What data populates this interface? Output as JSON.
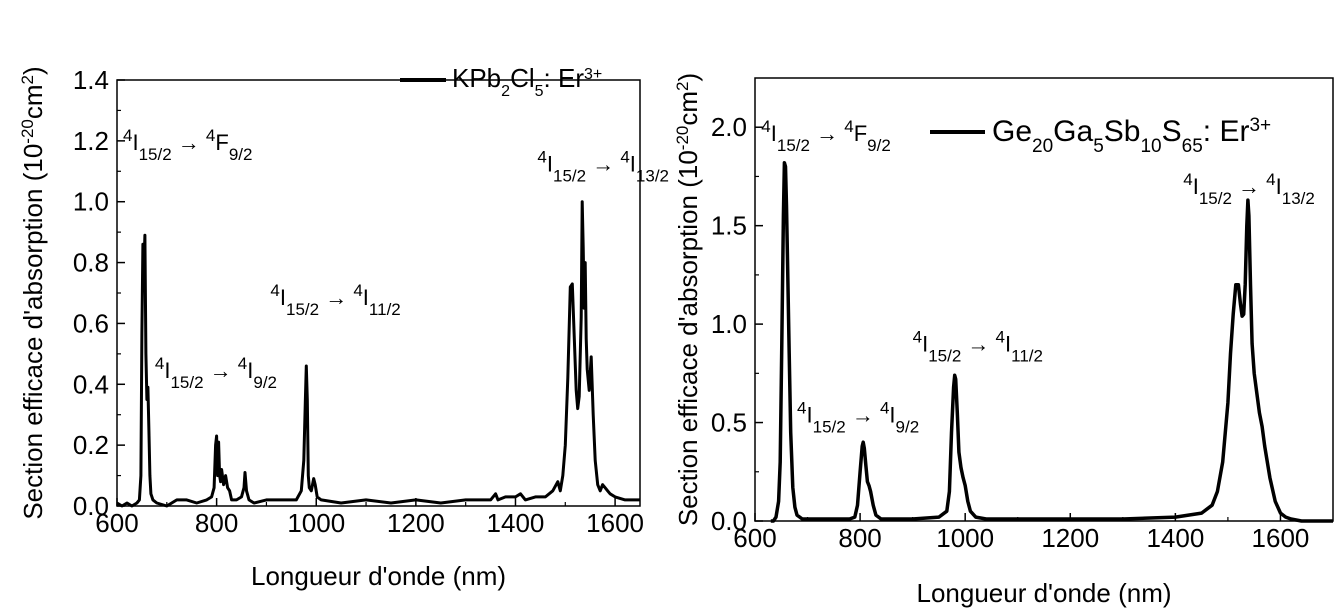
{
  "chart_data": [
    {
      "type": "line",
      "xlabel": "Longueur d'onde (nm)",
      "ylabel": "Section efficace d'absorption (10^-20 cm^2)",
      "ylabel_parts": [
        "Section efficace d'absorption (10",
        "-20",
        "cm",
        "2",
        ")"
      ],
      "xlim": [
        600,
        1650
      ],
      "ylim": [
        0,
        1.4
      ],
      "xticks": [
        600,
        800,
        1000,
        1200,
        1400,
        1600
      ],
      "yticks": [
        0.0,
        0.2,
        0.4,
        0.6,
        0.8,
        1.0,
        1.2,
        1.4
      ],
      "xtick_labels": [
        "600",
        "800",
        "1000",
        "1200",
        "1400",
        "1600"
      ],
      "ytick_labels": [
        "0.0",
        "0.2",
        "0.4",
        "0.6",
        "0.8",
        "1.0",
        "1.2",
        "1.4"
      ],
      "legend": {
        "placement": "top-right",
        "parts": [
          {
            "t": "KPb",
            "s": "n"
          },
          {
            "t": "2",
            "s": "sub"
          },
          {
            "t": "Cl",
            "s": "n"
          },
          {
            "t": "5",
            "s": "sub"
          },
          {
            "t": ": Er",
            "s": "n"
          },
          {
            "t": "3+",
            "s": "sup"
          }
        ]
      },
      "series": [
        {
          "color": "#000000",
          "x": [
            600,
            610,
            620,
            630,
            640,
            645,
            648,
            650,
            652,
            654,
            656,
            658,
            660,
            662,
            664,
            666,
            668,
            672,
            680,
            700,
            720,
            740,
            760,
            780,
            790,
            795,
            798,
            800,
            802,
            804,
            806,
            808,
            810,
            814,
            818,
            822,
            826,
            830,
            840,
            850,
            855,
            857,
            860,
            865,
            875,
            900,
            930,
            960,
            970,
            975,
            978,
            980,
            982,
            984,
            986,
            990,
            995,
            998,
            1002,
            1010,
            1050,
            1100,
            1150,
            1200,
            1250,
            1300,
            1350,
            1360,
            1365,
            1380,
            1400,
            1410,
            1420,
            1440,
            1460,
            1475,
            1485,
            1490,
            1495,
            1500,
            1505,
            1510,
            1514,
            1518,
            1522,
            1525,
            1528,
            1532,
            1534,
            1536,
            1538,
            1540,
            1542,
            1544,
            1548,
            1552,
            1556,
            1560,
            1565,
            1570,
            1575,
            1580,
            1585,
            1590,
            1600,
            1620,
            1650
          ],
          "y": [
            0.01,
            0.0,
            0.01,
            0.0,
            0.01,
            0.02,
            0.1,
            0.57,
            0.86,
            0.78,
            0.89,
            0.5,
            0.35,
            0.39,
            0.25,
            0.1,
            0.04,
            0.02,
            0.01,
            0.0,
            0.02,
            0.02,
            0.01,
            0.02,
            0.03,
            0.06,
            0.2,
            0.23,
            0.1,
            0.21,
            0.1,
            0.08,
            0.12,
            0.07,
            0.1,
            0.06,
            0.05,
            0.02,
            0.02,
            0.03,
            0.06,
            0.11,
            0.05,
            0.02,
            0.01,
            0.02,
            0.02,
            0.02,
            0.05,
            0.15,
            0.34,
            0.46,
            0.35,
            0.1,
            0.06,
            0.05,
            0.09,
            0.07,
            0.03,
            0.02,
            0.01,
            0.02,
            0.01,
            0.02,
            0.01,
            0.02,
            0.02,
            0.04,
            0.02,
            0.03,
            0.03,
            0.04,
            0.02,
            0.03,
            0.03,
            0.05,
            0.08,
            0.05,
            0.1,
            0.2,
            0.42,
            0.72,
            0.73,
            0.55,
            0.38,
            0.32,
            0.36,
            0.62,
            1.0,
            0.85,
            0.65,
            0.8,
            0.55,
            0.45,
            0.38,
            0.49,
            0.3,
            0.15,
            0.07,
            0.05,
            0.07,
            0.06,
            0.05,
            0.04,
            0.03,
            0.02,
            0.02
          ]
        }
      ],
      "annotations": [
        {
          "level": "15/2",
          "target": "F",
          "target_level": "9/2",
          "x": 612,
          "y": 1.17
        },
        {
          "level": "15/2",
          "target": "I",
          "target_level": "9/2",
          "x": 676,
          "y": 0.42
        },
        {
          "level": "15/2",
          "target": "I",
          "target_level": "11/2",
          "x": 908,
          "y": 0.66
        },
        {
          "level": "15/2",
          "target": "I",
          "target_level": "13/2",
          "x": 1444,
          "y": 1.1
        }
      ]
    },
    {
      "type": "line",
      "xlabel": "Longueur d'onde (nm)",
      "ylabel": "Section efficace d'absorption (10^-20 cm^2)",
      "ylabel_parts": [
        "Section efficace d'absorption (10",
        "-20",
        "cm",
        "2",
        ")"
      ],
      "xlim": [
        600,
        1700
      ],
      "ylim": [
        0,
        2.25
      ],
      "xticks": [
        600,
        800,
        1000,
        1200,
        1400,
        1600
      ],
      "yticks": [
        0.0,
        0.5,
        1.0,
        1.5,
        2.0
      ],
      "xtick_labels": [
        "600",
        "800",
        "1000",
        "1200",
        "1400",
        "1600"
      ],
      "ytick_labels": [
        "0.0",
        "0.5",
        "1.0",
        "1.5",
        "2.0"
      ],
      "legend": {
        "placement": "top-right",
        "parts": [
          {
            "t": "Ge",
            "s": "n"
          },
          {
            "t": "20",
            "s": "sub"
          },
          {
            "t": "Ga",
            "s": "n"
          },
          {
            "t": "5",
            "s": "sub"
          },
          {
            "t": "Sb",
            "s": "n"
          },
          {
            "t": "10",
            "s": "sub"
          },
          {
            "t": "S",
            "s": "n"
          },
          {
            "t": "65",
            "s": "sub"
          },
          {
            "t": ": Er",
            "s": "n"
          },
          {
            "t": "3+",
            "s": "sup"
          }
        ]
      },
      "series": [
        {
          "color": "#000000",
          "x": [
            630,
            635,
            640,
            645,
            648,
            651,
            654,
            656,
            658,
            660,
            662,
            665,
            668,
            672,
            676,
            680,
            690,
            700,
            750,
            780,
            790,
            795,
            800,
            804,
            806,
            808,
            811,
            814,
            817,
            820,
            825,
            830,
            840,
            860,
            900,
            950,
            965,
            970,
            974,
            978,
            980,
            982,
            985,
            988,
            992,
            996,
            1000,
            1005,
            1010,
            1020,
            1040,
            1100,
            1200,
            1300,
            1400,
            1450,
            1470,
            1480,
            1490,
            1500,
            1505,
            1510,
            1515,
            1520,
            1524,
            1527,
            1530,
            1533,
            1536,
            1538,
            1540,
            1543,
            1546,
            1550,
            1555,
            1560,
            1565,
            1570,
            1580,
            1590,
            1600,
            1610,
            1620,
            1640,
            1660,
            1700
          ],
          "y": [
            0.0,
            0.0,
            0.02,
            0.1,
            0.3,
            0.9,
            1.55,
            1.82,
            1.8,
            1.6,
            1.3,
            0.85,
            0.45,
            0.17,
            0.07,
            0.03,
            0.01,
            0.01,
            0.01,
            0.01,
            0.02,
            0.08,
            0.25,
            0.38,
            0.4,
            0.37,
            0.28,
            0.2,
            0.18,
            0.15,
            0.08,
            0.03,
            0.01,
            0.01,
            0.01,
            0.02,
            0.05,
            0.15,
            0.45,
            0.68,
            0.74,
            0.72,
            0.55,
            0.35,
            0.27,
            0.22,
            0.18,
            0.1,
            0.05,
            0.02,
            0.01,
            0.01,
            0.01,
            0.01,
            0.02,
            0.04,
            0.08,
            0.15,
            0.3,
            0.6,
            0.85,
            1.05,
            1.2,
            1.2,
            1.1,
            1.04,
            1.05,
            1.2,
            1.5,
            1.63,
            1.55,
            1.2,
            0.9,
            0.75,
            0.65,
            0.55,
            0.48,
            0.38,
            0.22,
            0.1,
            0.04,
            0.02,
            0.01,
            0.0,
            0.0,
            0.0
          ]
        }
      ],
      "annotations": [
        {
          "level": "15/2",
          "target": "F",
          "target_level": "9/2",
          "x": 612,
          "y": 1.93
        },
        {
          "level": "15/2",
          "target": "I",
          "target_level": "9/2",
          "x": 680,
          "y": 0.5
        },
        {
          "level": "15/2",
          "target": "I",
          "target_level": "11/2",
          "x": 900,
          "y": 0.86
        },
        {
          "level": "15/2",
          "target": "I",
          "target_level": "13/2",
          "x": 1415,
          "y": 1.66
        }
      ]
    }
  ]
}
